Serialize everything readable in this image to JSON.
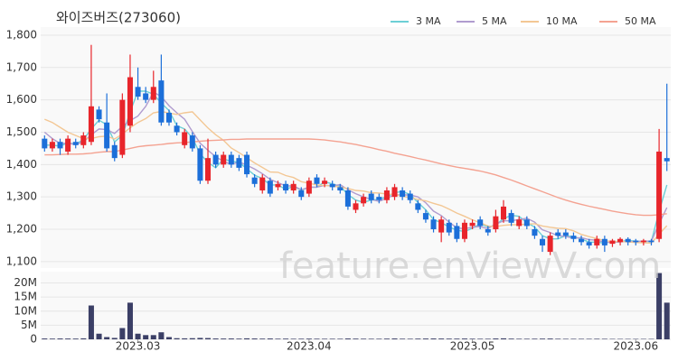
{
  "watermark": "feature.enViewV.com",
  "chart_data": [
    {
      "type": "candlestick",
      "title": "와이즈버즈(273060)",
      "up_color": "#e8252b",
      "down_color": "#1c6fd9",
      "grid": true,
      "legend": "top-right",
      "ylim": [
        1080,
        1825
      ],
      "yticks": [
        {
          "value": 1100,
          "label": "1,100"
        },
        {
          "value": 1200,
          "label": "1,200"
        },
        {
          "value": 1300,
          "label": "1,300"
        },
        {
          "value": 1400,
          "label": "1,400"
        },
        {
          "value": 1500,
          "label": "1,500"
        },
        {
          "value": 1600,
          "label": "1,600"
        },
        {
          "value": 1700,
          "label": "1,700"
        },
        {
          "value": 1800,
          "label": "1,800"
        }
      ],
      "open": [
        1480,
        1450,
        1470,
        1440,
        1470,
        1460,
        1470,
        1570,
        1530,
        1460,
        1430,
        1520,
        1640,
        1620,
        1600,
        1660,
        1560,
        1520,
        1460,
        1490,
        1450,
        1350,
        1430,
        1400,
        1430,
        1420,
        1430,
        1360,
        1320,
        1350,
        1330,
        1340,
        1320,
        1320,
        1310,
        1360,
        1340,
        1340,
        1330,
        1320,
        1260,
        1280,
        1310,
        1300,
        1290,
        1300,
        1320,
        1310,
        1280,
        1250,
        1230,
        1190,
        1220,
        1210,
        1170,
        1210,
        1230,
        1200,
        1200,
        1230,
        1250,
        1210,
        1230,
        1200,
        1170,
        1130,
        1190,
        1190,
        1180,
        1170,
        1160,
        1150,
        1170,
        1155,
        1160,
        1170,
        1165,
        1160,
        1165,
        1170,
        1420
      ],
      "high": [
        1490,
        1480,
        1480,
        1490,
        1480,
        1500,
        1770,
        1580,
        1620,
        1470,
        1620,
        1740,
        1700,
        1640,
        1690,
        1740,
        1570,
        1530,
        1510,
        1500,
        1460,
        1480,
        1440,
        1440,
        1440,
        1430,
        1440,
        1370,
        1370,
        1360,
        1350,
        1350,
        1350,
        1330,
        1360,
        1370,
        1360,
        1350,
        1340,
        1330,
        1290,
        1310,
        1320,
        1310,
        1330,
        1340,
        1330,
        1320,
        1290,
        1260,
        1240,
        1240,
        1230,
        1220,
        1230,
        1230,
        1240,
        1210,
        1260,
        1290,
        1260,
        1240,
        1240,
        1210,
        1180,
        1190,
        1200,
        1200,
        1190,
        1180,
        1170,
        1180,
        1180,
        1170,
        1175,
        1175,
        1170,
        1170,
        1170,
        1510,
        1650
      ],
      "low": [
        1440,
        1440,
        1430,
        1430,
        1450,
        1450,
        1460,
        1530,
        1440,
        1410,
        1420,
        1500,
        1600,
        1590,
        1590,
        1520,
        1520,
        1490,
        1450,
        1440,
        1340,
        1340,
        1390,
        1390,
        1390,
        1380,
        1360,
        1330,
        1310,
        1300,
        1320,
        1310,
        1310,
        1290,
        1300,
        1330,
        1330,
        1320,
        1310,
        1260,
        1250,
        1270,
        1280,
        1280,
        1280,
        1290,
        1290,
        1280,
        1250,
        1220,
        1190,
        1160,
        1180,
        1160,
        1160,
        1200,
        1200,
        1180,
        1190,
        1220,
        1210,
        1200,
        1200,
        1170,
        1130,
        1120,
        1170,
        1170,
        1160,
        1150,
        1140,
        1140,
        1130,
        1145,
        1150,
        1150,
        1150,
        1150,
        1150,
        1160,
        1380
      ],
      "close": [
        1450,
        1470,
        1450,
        1480,
        1460,
        1490,
        1580,
        1540,
        1450,
        1420,
        1600,
        1670,
        1610,
        1600,
        1640,
        1530,
        1530,
        1500,
        1500,
        1450,
        1350,
        1420,
        1400,
        1430,
        1400,
        1390,
        1370,
        1340,
        1360,
        1310,
        1340,
        1320,
        1340,
        1300,
        1350,
        1340,
        1350,
        1330,
        1320,
        1270,
        1280,
        1300,
        1290,
        1290,
        1320,
        1330,
        1300,
        1290,
        1260,
        1230,
        1200,
        1230,
        1190,
        1170,
        1220,
        1220,
        1210,
        1190,
        1240,
        1270,
        1220,
        1230,
        1210,
        1180,
        1150,
        1180,
        1180,
        1180,
        1170,
        1160,
        1150,
        1170,
        1150,
        1165,
        1170,
        1160,
        1160,
        1165,
        1160,
        1440,
        1410
      ],
      "series": [
        {
          "name": "3 MA",
          "color": "#6ccfd6",
          "values": [
            1460,
            1460,
            1457,
            1467,
            1463,
            1477,
            1510,
            1537,
            1523,
            1470,
            1490,
            1563,
            1627,
            1627,
            1617,
            1590,
            1567,
            1520,
            1510,
            1483,
            1433,
            1407,
            1390,
            1417,
            1410,
            1407,
            1387,
            1367,
            1357,
            1337,
            1337,
            1323,
            1333,
            1320,
            1330,
            1330,
            1347,
            1340,
            1333,
            1307,
            1290,
            1283,
            1290,
            1293,
            1300,
            1313,
            1317,
            1307,
            1283,
            1260,
            1230,
            1220,
            1207,
            1197,
            1193,
            1203,
            1217,
            1207,
            1213,
            1233,
            1243,
            1240,
            1220,
            1207,
            1180,
            1170,
            1170,
            1180,
            1177,
            1170,
            1160,
            1160,
            1157,
            1162,
            1162,
            1165,
            1163,
            1162,
            1162,
            1255,
            1337
          ]
        },
        {
          "name": "5 MA",
          "color": "#b09ccf",
          "values": [
            1500,
            1480,
            1465,
            1466,
            1462,
            1470,
            1492,
            1510,
            1508,
            1496,
            1518,
            1536,
            1550,
            1580,
            1624,
            1610,
            1582,
            1560,
            1540,
            1502,
            1466,
            1444,
            1424,
            1410,
            1400,
            1408,
            1398,
            1386,
            1372,
            1354,
            1344,
            1334,
            1334,
            1322,
            1330,
            1330,
            1336,
            1334,
            1338,
            1322,
            1310,
            1300,
            1292,
            1286,
            1296,
            1306,
            1306,
            1306,
            1300,
            1282,
            1256,
            1242,
            1222,
            1204,
            1202,
            1206,
            1208,
            1202,
            1216,
            1226,
            1226,
            1230,
            1234,
            1222,
            1198,
            1190,
            1180,
            1178,
            1172,
            1174,
            1168,
            1166,
            1160,
            1159,
            1161,
            1163,
            1161,
            1164,
            1163,
            1217,
            1267
          ]
        },
        {
          "name": "10 MA",
          "color": "#f3c794",
          "values": [
            1540,
            1530,
            1515,
            1500,
            1490,
            1480,
            1480,
            1486,
            1488,
            1479,
            1494,
            1514,
            1530,
            1542,
            1560,
            1564,
            1559,
            1555,
            1560,
            1563,
            1538,
            1513,
            1492,
            1475,
            1451,
            1437,
            1421,
            1405,
            1391,
            1377,
            1376,
            1366,
            1360,
            1347,
            1342,
            1337,
            1335,
            1334,
            1330,
            1326,
            1320,
            1318,
            1313,
            1312,
            1309,
            1307,
            1302,
            1298,
            1292,
            1288,
            1280,
            1273,
            1262,
            1250,
            1240,
            1229,
            1220,
            1210,
            1208,
            1212,
            1214,
            1214,
            1216,
            1217,
            1210,
            1206,
            1203,
            1202,
            1195,
            1184,
            1177,
            1171,
            1165,
            1161,
            1163,
            1161,
            1159,
            1158,
            1157,
            1185,
            1211
          ]
        },
        {
          "name": "50 MA",
          "color": "#f4a291",
          "values": [
            1430,
            1430,
            1431,
            1432,
            1432,
            1433,
            1435,
            1438,
            1440,
            1440,
            1445,
            1450,
            1455,
            1458,
            1460,
            1462,
            1465,
            1467,
            1468,
            1470,
            1472,
            1474,
            1475,
            1476,
            1478,
            1478,
            1479,
            1479,
            1479,
            1479,
            1479,
            1479,
            1479,
            1479,
            1479,
            1478,
            1476,
            1473,
            1470,
            1466,
            1462,
            1457,
            1452,
            1446,
            1441,
            1435,
            1430,
            1425,
            1419,
            1414,
            1408,
            1402,
            1397,
            1392,
            1388,
            1384,
            1380,
            1374,
            1368,
            1360,
            1352,
            1343,
            1334,
            1325,
            1316,
            1307,
            1298,
            1290,
            1283,
            1277,
            1271,
            1266,
            1261,
            1256,
            1252,
            1248,
            1245,
            1243,
            1243,
            1245,
            1248
          ]
        }
      ]
    },
    {
      "type": "bar",
      "color": "#3b3f66",
      "grid": true,
      "ylim": [
        0,
        24000000
      ],
      "yticks": [
        0,
        {
          "value": 5000000,
          "label": "5M"
        },
        {
          "value": 10000000,
          "label": "10M"
        },
        {
          "value": 15000000,
          "label": "15M"
        },
        {
          "value": 20000000,
          "label": "20M"
        }
      ],
      "categories": [
        null,
        null,
        null,
        null,
        null,
        null,
        null,
        null,
        null,
        null,
        null,
        null,
        "2023.03",
        null,
        null,
        null,
        null,
        null,
        null,
        null,
        null,
        null,
        null,
        null,
        null,
        null,
        null,
        null,
        null,
        null,
        null,
        null,
        null,
        null,
        "2023.04",
        null,
        null,
        null,
        null,
        null,
        null,
        null,
        null,
        null,
        null,
        null,
        null,
        null,
        null,
        null,
        null,
        null,
        null,
        null,
        null,
        "2023.05",
        null,
        null,
        null,
        null,
        null,
        null,
        null,
        null,
        null,
        null,
        null,
        null,
        null,
        null,
        null,
        null,
        null,
        null,
        null,
        null,
        "2023.06",
        null,
        null,
        null,
        null
      ],
      "values": [
        300000,
        250000,
        300000,
        280000,
        260000,
        350000,
        12000000,
        2000000,
        800000,
        500000,
        4000000,
        13000000,
        2000000,
        1500000,
        1500000,
        2500000,
        800000,
        400000,
        350000,
        400000,
        500000,
        450000,
        300000,
        280000,
        300000,
        250000,
        350000,
        300000,
        250000,
        300000,
        220000,
        250000,
        200000,
        220000,
        250000,
        220000,
        200000,
        200000,
        200000,
        300000,
        250000,
        220000,
        200000,
        200000,
        250000,
        300000,
        220000,
        200000,
        250000,
        280000,
        300000,
        280000,
        250000,
        250000,
        280000,
        220000,
        200000,
        200000,
        300000,
        350000,
        250000,
        200000,
        200000,
        220000,
        250000,
        280000,
        200000,
        180000,
        180000,
        180000,
        180000,
        200000,
        180000,
        150000,
        150000,
        150000,
        150000,
        150000,
        150000,
        23500000,
        13000000
      ]
    }
  ]
}
